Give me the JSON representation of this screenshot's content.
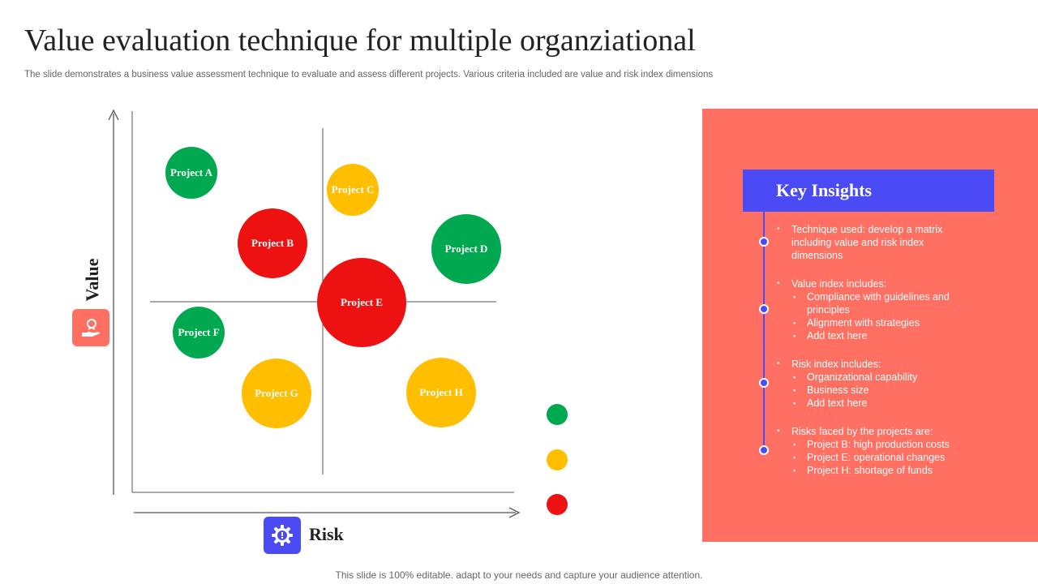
{
  "header": {
    "title": "Value evaluation technique for multiple organziational",
    "subtitle": "The slide demonstrates a business value assessment technique to evaluate and assess different projects. Various criteria included are value and risk index dimensions"
  },
  "axes": {
    "y_label": "Value",
    "x_label": "Risk",
    "y_icon": "hand-with-medal-icon",
    "x_icon": "gear-with-warning-icon"
  },
  "projects": [
    {
      "label": "Project A",
      "color": "#00A94F",
      "size": "small"
    },
    {
      "label": "Project B",
      "color": "#EE1111",
      "size": "medium"
    },
    {
      "label": "Project C",
      "color": "#FFBE00",
      "size": "small"
    },
    {
      "label": "Project D",
      "color": "#00A94F",
      "size": "medium"
    },
    {
      "label": "Project E",
      "color": "#EE1111",
      "size": "large"
    },
    {
      "label": "Project F",
      "color": "#00A94F",
      "size": "small"
    },
    {
      "label": "Project G",
      "color": "#FFBE00",
      "size": "medium"
    },
    {
      "label": "Project H",
      "color": "#FFBE00",
      "size": "medium"
    }
  ],
  "legend_colors": [
    "#00A94F",
    "#FFBE00",
    "#EE1111"
  ],
  "insights": {
    "title": "Key Insights",
    "blocks": [
      {
        "bullet": "Technique used: develop a matrix including value and risk index dimensions",
        "subs": []
      },
      {
        "bullet": "Value index includes:",
        "subs": [
          "Compliance with guidelines and principles",
          "Alignment with strategies",
          "Add text here"
        ]
      },
      {
        "bullet": "Risk index includes:",
        "subs": [
          "Organizational capability",
          "Business size",
          "Add text here"
        ]
      },
      {
        "bullet": "Risks faced by the projects are:",
        "subs": [
          "Project B: high production costs",
          "Project E: operational changes",
          "Project H: shortage of funds"
        ]
      }
    ]
  },
  "footer": "This slide is 100% editable. adapt to your needs and capture your audience attention.",
  "colors": {
    "panel_bg": "#FF7063",
    "header_bg": "#4B4BF5",
    "timeline": "#4B4BF5",
    "value_icon_bg": "#FF7063",
    "risk_icon_bg": "#4B4BF5",
    "axis": "#555555"
  }
}
